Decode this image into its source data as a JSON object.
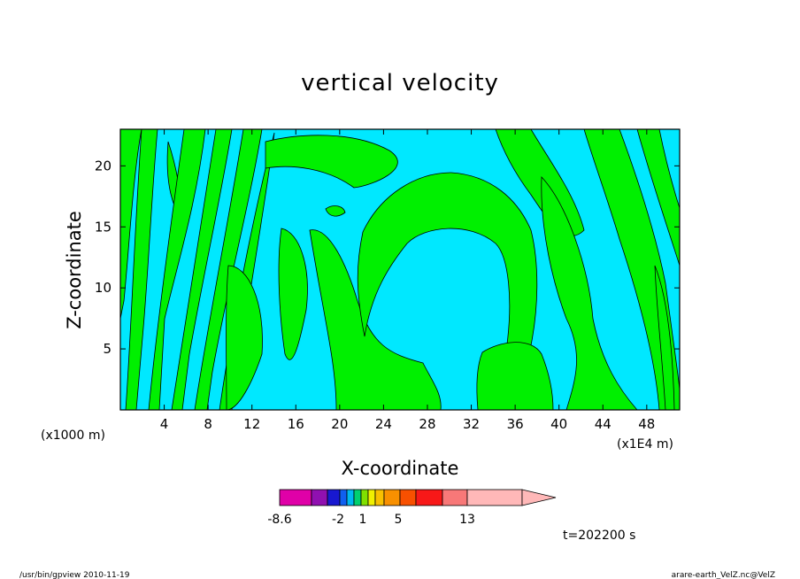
{
  "chart_data": {
    "type": "heatmap",
    "title": "vertical velocity",
    "xlabel": "X-coordinate",
    "ylabel": "Z-coordinate",
    "x_unit_note": "(x1E4 m)",
    "y_unit_note": "(x1000 m)",
    "xlim": [
      0,
      51
    ],
    "ylim": [
      0,
      23
    ],
    "x_ticks": [
      "4",
      "8",
      "12",
      "16",
      "20",
      "24",
      "28",
      "32",
      "36",
      "40",
      "44",
      "48"
    ],
    "y_ticks": [
      "5",
      "10",
      "15",
      "20"
    ],
    "colorbar": {
      "labels": [
        "-8.6",
        "-2",
        "1",
        "5",
        "13"
      ],
      "colors": [
        "#e000a8",
        "#9010b0",
        "#1818d0",
        "#1060f0",
        "#00b8f0",
        "#00d070",
        "#80e000",
        "#f0f000",
        "#f8c000",
        "#f89000",
        "#f85000",
        "#f81818",
        "#f87878",
        "#ffb8b8"
      ]
    },
    "field_colors": {
      "low": "#00e8ff",
      "high": "#00f000"
    },
    "time_label": "t=202200 s"
  },
  "footer": {
    "left": "/usr/bin/gpview   2010-11-19",
    "right": "arare-earth_VelZ.nc@VelZ"
  }
}
